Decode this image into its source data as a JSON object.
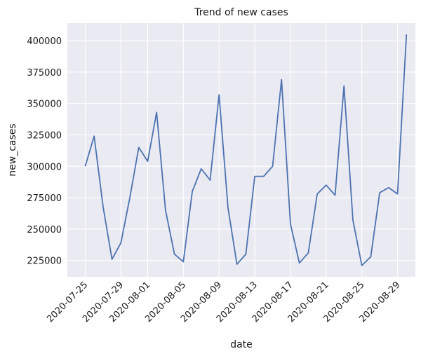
{
  "chart_data": {
    "type": "line",
    "title": "Trend of new cases",
    "xlabel": "date",
    "ylabel": "new_cases",
    "background_color": "#eaeaf2",
    "grid_color": "#ffffff",
    "grid": true,
    "x_tick_labels": [
      "2020-07-25",
      "2020-07-29",
      "2020-08-01",
      "2020-08-05",
      "2020-08-09",
      "2020-08-13",
      "2020-08-17",
      "2020-08-21",
      "2020-08-25",
      "2020-08-29"
    ],
    "y_tick_labels": [
      "225000",
      "250000",
      "275000",
      "300000",
      "325000",
      "350000",
      "375000",
      "400000"
    ],
    "y_ticks": [
      225000,
      250000,
      275000,
      300000,
      325000,
      350000,
      375000,
      400000
    ],
    "ylim": [
      212000,
      414000
    ],
    "xlim": [
      "2020-07-23",
      "2020-08-31"
    ],
    "series": [
      {
        "color": "#4c72b0",
        "x": [
          "2020-07-25",
          "2020-07-26",
          "2020-07-27",
          "2020-07-28",
          "2020-07-29",
          "2020-07-30",
          "2020-07-31",
          "2020-08-01",
          "2020-08-02",
          "2020-08-03",
          "2020-08-04",
          "2020-08-05",
          "2020-08-06",
          "2020-08-07",
          "2020-08-08",
          "2020-08-09",
          "2020-08-10",
          "2020-08-11",
          "2020-08-12",
          "2020-08-13",
          "2020-08-14",
          "2020-08-15",
          "2020-08-16",
          "2020-08-17",
          "2020-08-18",
          "2020-08-19",
          "2020-08-20",
          "2020-08-21",
          "2020-08-22",
          "2020-08-23",
          "2020-08-24",
          "2020-08-25",
          "2020-08-26",
          "2020-08-27",
          "2020-08-28",
          "2020-08-29",
          "2020-08-30"
        ],
        "values": [
          300000,
          324000,
          268000,
          226000,
          239000,
          275000,
          315000,
          304000,
          343000,
          265000,
          230000,
          224000,
          280000,
          298000,
          289000,
          357000,
          267000,
          222000,
          230000,
          292000,
          292000,
          300000,
          369000,
          254000,
          223000,
          231000,
          278000,
          285000,
          277000,
          364000,
          257000,
          221000,
          228000,
          279000,
          283000,
          278000,
          405000
        ]
      }
    ]
  }
}
